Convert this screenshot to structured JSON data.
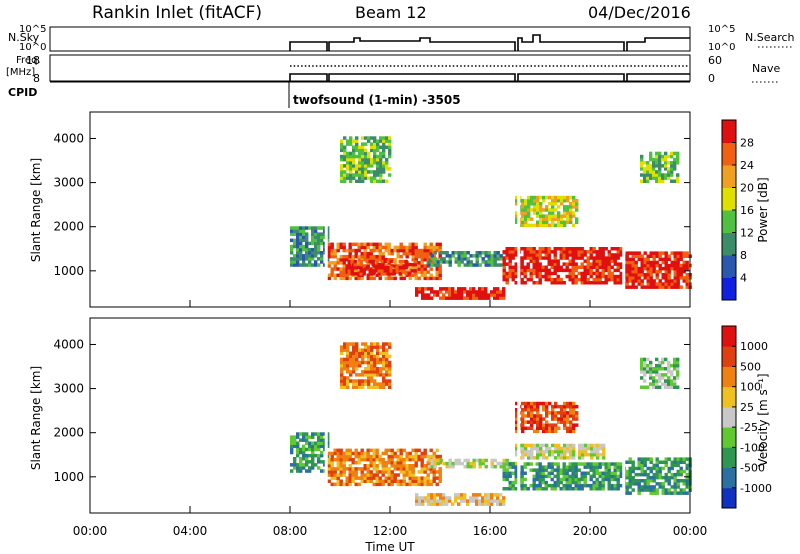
{
  "header": {
    "title": "Rankin Inlet (fitACF)",
    "beam": "Beam 12",
    "date": "04/Dec/2016"
  },
  "top_panels": {
    "nsky_label": "N.Sky",
    "nsky_ticks": [
      "10^5",
      "10^0"
    ],
    "nsearch_label": "N.Search",
    "nsearch_ticks": [
      "10^5",
      "10^0"
    ],
    "freq_label_line1": "Freq.",
    "freq_label_line2": "[MHz]",
    "freq_ticks": [
      "18",
      "8"
    ],
    "nave_label": "Nave",
    "nave_ticks": [
      "60",
      "0"
    ],
    "cpid_label": "CPID",
    "cpid_text": "twofsound (1-min) -3505"
  },
  "chart_data": [
    {
      "type": "heatmap",
      "name": "power",
      "ylabel": "Slant Range [km]",
      "yticks": [
        1000,
        2000,
        3000,
        4000
      ],
      "ylim": [
        180,
        4600
      ],
      "xlim": [
        0,
        24
      ],
      "colorbar_label": "Power [dB]",
      "colorbar_ticks": [
        "28",
        "24",
        "20",
        "16",
        "12",
        "8",
        "4"
      ],
      "colors": [
        "#1020e0",
        "#2a58b0",
        "#3c8c6a",
        "#50c040",
        "#e0e000",
        "#f0a020",
        "#f06010",
        "#e01010"
      ],
      "data_start_ut": 8,
      "gap_times_ut": [
        9.45,
        17.15,
        21.35
      ],
      "echo_regions": [
        {
          "t0": 8,
          "t1": 9.5,
          "r0": 1100,
          "r1": 2000,
          "level": 2
        },
        {
          "t0": 9.5,
          "t1": 14.0,
          "r0": 800,
          "r1": 1600,
          "level": 6
        },
        {
          "t0": 10.3,
          "t1": 13.0,
          "r0": 900,
          "r1": 1200,
          "level": 7
        },
        {
          "t0": 13.0,
          "t1": 16.5,
          "r0": 350,
          "r1": 600,
          "level": 7
        },
        {
          "t0": 13.5,
          "t1": 16.5,
          "r0": 1100,
          "r1": 1400,
          "level": 2
        },
        {
          "t0": 16.5,
          "t1": 21.3,
          "r0": 700,
          "r1": 1500,
          "level": 7
        },
        {
          "t0": 21.3,
          "t1": 24.0,
          "r0": 600,
          "r1": 1400,
          "level": 7
        },
        {
          "t0": 17.0,
          "t1": 19.5,
          "r0": 2000,
          "r1": 2700,
          "level": 4
        },
        {
          "t0": 10.0,
          "t1": 12.0,
          "r0": 3000,
          "r1": 4000,
          "level": 3
        },
        {
          "t0": 22.0,
          "t1": 23.5,
          "r0": 3000,
          "r1": 3700,
          "level": 3
        }
      ]
    },
    {
      "type": "heatmap",
      "name": "velocity",
      "ylabel": "Slant Range [km]",
      "yticks": [
        1000,
        2000,
        3000,
        4000
      ],
      "ylim": [
        180,
        4600
      ],
      "xlim": [
        0,
        24
      ],
      "xticks": [
        "00:00",
        "04:00",
        "08:00",
        "12:00",
        "16:00",
        "20:00",
        "00:00"
      ],
      "xlabel": "Time UT",
      "colorbar_label": "Velocity [m s⁻¹]",
      "colorbar_ticks": [
        "1000",
        "500",
        "100",
        "25",
        "-25",
        "-100",
        "-500",
        "-1000"
      ],
      "colors": [
        "#1030c0",
        "#2a70a0",
        "#2e9650",
        "#60c830",
        "#c8c8c8",
        "#f0c020",
        "#f08010",
        "#e04010",
        "#e01010"
      ],
      "data_start_ut": 8,
      "gap_times_ut": [
        9.45,
        17.15,
        21.35
      ],
      "echo_regions": [
        {
          "t0": 8,
          "t1": 9.5,
          "r0": 1100,
          "r1": 2000,
          "level": 2
        },
        {
          "t0": 9.5,
          "t1": 14.0,
          "r0": 800,
          "r1": 1600,
          "level": 6
        },
        {
          "t0": 13.0,
          "t1": 16.5,
          "r0": 350,
          "r1": 600,
          "level": 5
        },
        {
          "t0": 13.5,
          "t1": 17.0,
          "r0": 1200,
          "r1": 1400,
          "level": 4
        },
        {
          "t0": 17.0,
          "t1": 20.5,
          "r0": 1400,
          "r1": 1700,
          "level": 4
        },
        {
          "t0": 16.5,
          "t1": 21.3,
          "r0": 700,
          "r1": 1300,
          "level": 2
        },
        {
          "t0": 21.3,
          "t1": 24.0,
          "r0": 600,
          "r1": 1400,
          "level": 2
        },
        {
          "t0": 17.0,
          "t1": 19.5,
          "r0": 2000,
          "r1": 2700,
          "level": 7
        },
        {
          "t0": 10.0,
          "t1": 12.0,
          "r0": 3000,
          "r1": 4000,
          "level": 6
        },
        {
          "t0": 22.0,
          "t1": 23.5,
          "r0": 3000,
          "r1": 3700,
          "level": 3
        }
      ]
    }
  ]
}
